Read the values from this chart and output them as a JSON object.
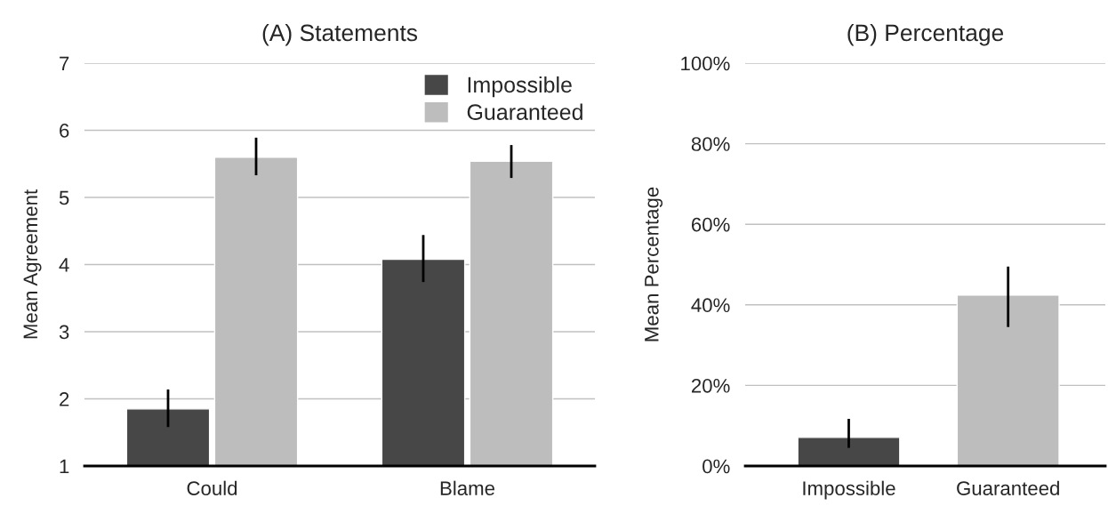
{
  "chart_data": [
    {
      "type": "bar",
      "title": "(A) Statements",
      "ylabel": "Mean Agreement",
      "categories": [
        "Could",
        "Blame"
      ],
      "series": [
        {
          "name": "Impossible",
          "color": "#474747",
          "values": [
            1.85,
            4.08
          ],
          "errors": [
            [
              1.58,
              2.14
            ],
            [
              3.74,
              4.44
            ]
          ]
        },
        {
          "name": "Guaranteed",
          "color": "#bdbdbd",
          "values": [
            5.6,
            5.54
          ],
          "errors": [
            [
              5.33,
              5.89
            ],
            [
              5.29,
              5.78
            ]
          ]
        }
      ],
      "ylim": [
        1,
        7
      ],
      "yticks": [
        1,
        2,
        3,
        4,
        5,
        6,
        7
      ],
      "grid": "y",
      "legend": "top right"
    },
    {
      "type": "bar",
      "title": "(B) Percentage",
      "ylabel": "Mean Percentage",
      "categories": [
        "Impossible",
        "Guaranteed"
      ],
      "values": [
        7.1,
        42.4
      ],
      "colors": [
        "#474747",
        "#bdbdbd"
      ],
      "errors": [
        [
          4.5,
          11.7
        ],
        [
          34.5,
          49.5
        ]
      ],
      "ylim": [
        0,
        100
      ],
      "yticks": [
        {
          "value": 0,
          "label": "0%"
        },
        {
          "value": 20,
          "label": "20%"
        },
        {
          "value": 40,
          "label": "40%"
        },
        {
          "value": 60,
          "label": "60%"
        },
        {
          "value": 80,
          "label": "80%"
        },
        {
          "value": 100,
          "label": "100%"
        }
      ],
      "grid": "y"
    }
  ]
}
